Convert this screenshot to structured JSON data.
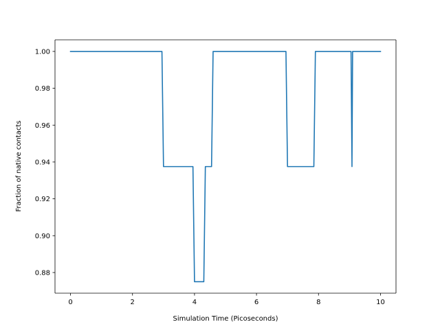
{
  "chart_data": {
    "type": "line",
    "title": "",
    "xlabel": "Simulation Time (Picoseconds)",
    "ylabel": "Fraction of native contacts",
    "xlim": [
      -0.5,
      10.5
    ],
    "ylim": [
      0.8688,
      1.0063
    ],
    "xticks": [
      0,
      2,
      4,
      6,
      8,
      10
    ],
    "yticks": [
      0.88,
      0.9,
      0.92,
      0.94,
      0.96,
      0.98,
      1.0
    ],
    "xtick_labels": [
      "0",
      "2",
      "4",
      "6",
      "8",
      "10"
    ],
    "ytick_labels": [
      "0.88",
      "0.90",
      "0.92",
      "0.94",
      "0.96",
      "0.98",
      "1.00"
    ],
    "grid": false,
    "line_color": "#1f77b4",
    "series": [
      {
        "x": [
          0.0,
          2.95,
          3.0,
          3.95,
          4.0,
          4.3,
          4.35,
          4.55,
          4.6,
          6.95,
          7.0,
          7.85,
          7.9,
          9.05,
          9.08,
          9.1,
          10.0
        ],
        "y": [
          1.0,
          1.0,
          0.9375,
          0.9375,
          0.875,
          0.875,
          0.9375,
          0.9375,
          1.0,
          1.0,
          0.9375,
          0.9375,
          1.0,
          1.0,
          0.9375,
          1.0,
          1.0
        ]
      }
    ]
  }
}
